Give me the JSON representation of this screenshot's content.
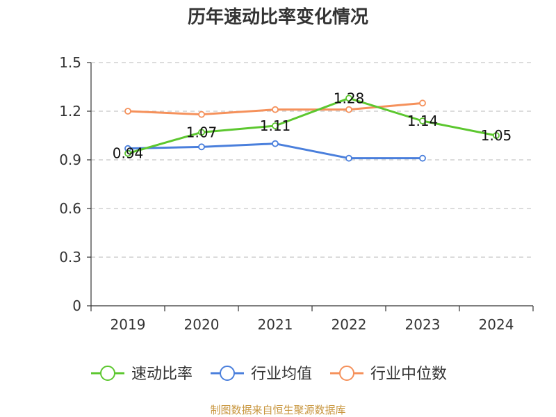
{
  "chart_data": {
    "type": "line",
    "title": "历年速动比率变化情况",
    "categories": [
      "2019",
      "2020",
      "2021",
      "2022",
      "2023",
      "2024"
    ],
    "series": [
      {
        "name": "速动比率",
        "color": "#5cc72f",
        "values": [
          0.94,
          1.07,
          1.11,
          1.28,
          1.14,
          1.05
        ],
        "show_labels": true
      },
      {
        "name": "行业均值",
        "color": "#4a7fdc",
        "values": [
          0.97,
          0.98,
          1.0,
          0.91,
          0.91,
          null
        ],
        "show_labels": false
      },
      {
        "name": "行业中位数",
        "color": "#f5915b",
        "values": [
          1.2,
          1.18,
          1.21,
          1.21,
          1.25,
          null
        ],
        "show_labels": false
      }
    ],
    "y_ticks": [
      "0",
      "0.3",
      "0.6",
      "0.9",
      "1.2",
      "1.5"
    ],
    "ylim": [
      0,
      1.5
    ],
    "xlabel": "",
    "ylabel": "",
    "grid": true,
    "legend_position": "bottom"
  },
  "source": {
    "text": "制图数据来自恒生聚源数据库",
    "color": "#c8963e"
  }
}
